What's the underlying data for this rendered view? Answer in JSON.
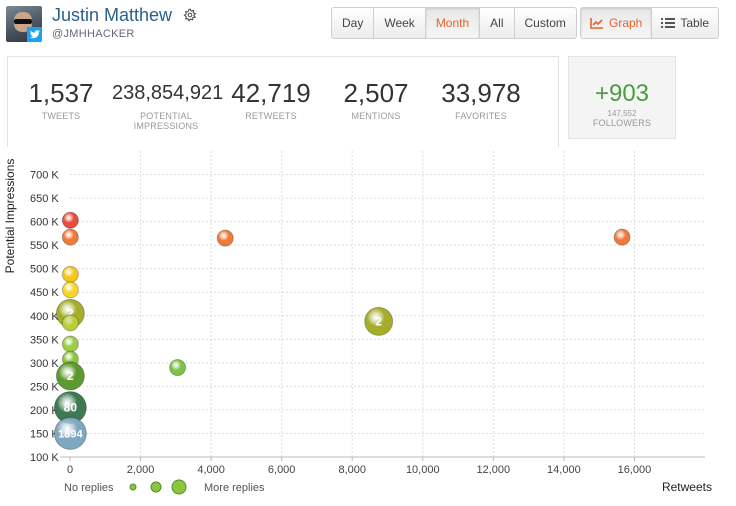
{
  "profile": {
    "name": "Justin Matthew",
    "handle": "@JMHHACKER"
  },
  "range_tabs": [
    {
      "label": "Day",
      "active": false
    },
    {
      "label": "Week",
      "active": false
    },
    {
      "label": "Month",
      "active": true
    },
    {
      "label": "All",
      "active": false
    },
    {
      "label": "Custom",
      "active": false
    }
  ],
  "view_tabs": [
    {
      "label": "Graph",
      "active": true,
      "icon": "line-chart-icon"
    },
    {
      "label": "Table",
      "active": false,
      "icon": "list-icon"
    }
  ],
  "stats": [
    {
      "value": "1,537",
      "label": "TWEETS"
    },
    {
      "value": "238,854,921",
      "label": "POTENTIAL IMPRESSIONS"
    },
    {
      "value": "42,719",
      "label": "RETWEETS"
    },
    {
      "value": "2,507",
      "label": "MENTIONS"
    },
    {
      "value": "33,978",
      "label": "FAVORITES"
    }
  ],
  "followers": {
    "delta": "+903",
    "count": "147,552",
    "label": "FOLLOWERS"
  },
  "colors": {
    "accent": "#e8622c",
    "positive": "#4a9c3f",
    "link": "#2b5f8a"
  },
  "chart_data": {
    "type": "scatter",
    "xlabel": "Retweets",
    "ylabel": "Potential Impressions",
    "xlim": [
      0,
      18000
    ],
    "ylim": [
      100000,
      750000
    ],
    "x_ticks": [
      0,
      2000,
      4000,
      6000,
      8000,
      10000,
      12000,
      14000,
      16000
    ],
    "x_tick_labels": [
      "0",
      "2,000",
      "4,000",
      "6,000",
      "8,000",
      "10,000",
      "12,000",
      "14,000",
      "16,000"
    ],
    "y_ticks": [
      100000,
      150000,
      200000,
      250000,
      300000,
      350000,
      400000,
      450000,
      500000,
      550000,
      600000,
      650000,
      700000
    ],
    "y_tick_labels": [
      "100 K",
      "150 K",
      "200 K",
      "250 K",
      "300 K",
      "350 K",
      "400 K",
      "450 K",
      "500 K",
      "550 K",
      "600 K",
      "650 K",
      "700 K"
    ],
    "grid": true,
    "points": [
      {
        "x": 10,
        "y": 603000,
        "size": 1,
        "color": "#e74c3c",
        "label": ""
      },
      {
        "x": 10,
        "y": 567000,
        "size": 1,
        "color": "#f07a3a",
        "label": ""
      },
      {
        "x": 4400,
        "y": 565000,
        "size": 1,
        "color": "#f07a3a",
        "label": ""
      },
      {
        "x": 15650,
        "y": 567000,
        "size": 1,
        "color": "#f07a3a",
        "label": ""
      },
      {
        "x": 10,
        "y": 488000,
        "size": 1,
        "color": "#f5c518",
        "label": ""
      },
      {
        "x": 10,
        "y": 455000,
        "size": 1,
        "color": "#f5d62a",
        "label": ""
      },
      {
        "x": 10,
        "y": 405000,
        "size": 2,
        "color": "#a6ad2a",
        "label": "2"
      },
      {
        "x": 10,
        "y": 385000,
        "size": 1,
        "color": "#b8cf3a",
        "label": ""
      },
      {
        "x": 10,
        "y": 340000,
        "size": 1,
        "color": "#9acd45",
        "label": ""
      },
      {
        "x": 10,
        "y": 308000,
        "size": 1,
        "color": "#8cc63e",
        "label": ""
      },
      {
        "x": 10,
        "y": 272000,
        "size": 2,
        "color": "#5a9a2e",
        "label": "2"
      },
      {
        "x": 3050,
        "y": 290000,
        "size": 1,
        "color": "#7cc34a",
        "label": ""
      },
      {
        "x": 8750,
        "y": 388000,
        "size": 2,
        "color": "#a6ad2a",
        "label": "2"
      },
      {
        "x": 10,
        "y": 205000,
        "size": 3,
        "color": "#3d7a52",
        "label": "80"
      },
      {
        "x": 10,
        "y": 150000,
        "size": 3,
        "color": "#7ea7c0",
        "label": "1894"
      }
    ],
    "legend": {
      "left_label": "No replies",
      "right_label": "More replies",
      "color": "#8cc63e",
      "placement": "bottom-left"
    }
  }
}
